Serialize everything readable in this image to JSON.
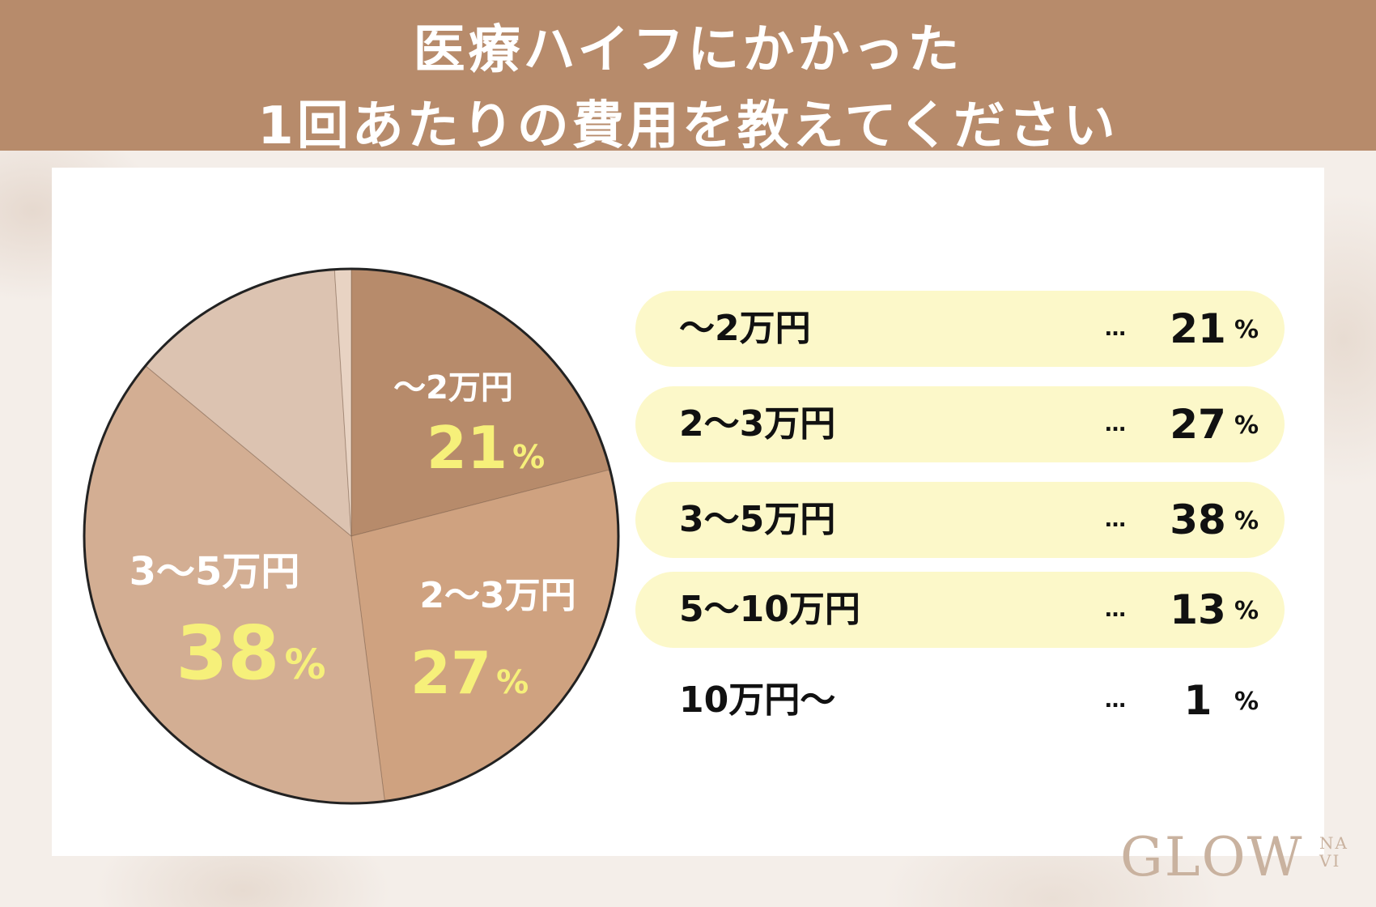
{
  "header": {
    "line1": "医療ハイフにかかった",
    "line2": "1回あたりの費用を教えてください"
  },
  "colors": {
    "header_bg": "#b78b6b",
    "legend_highlight": "#fcf8c9",
    "pie_label_pct": "#f6f07a",
    "pie_label_text": "#ffffff"
  },
  "chart_data": {
    "type": "pie",
    "title": "医療ハイフにかかった1回あたりの費用を教えてください",
    "unit": "%",
    "slices": [
      {
        "label": "〜2万円",
        "value": 21,
        "color": "#b78b6b"
      },
      {
        "label": "2〜3万円",
        "value": 27,
        "color": "#cfa280"
      },
      {
        "label": "3〜5万円",
        "value": 38,
        "color": "#d3ae93"
      },
      {
        "label": "5〜10万円",
        "value": 13,
        "color": "#dcc3b1"
      },
      {
        "label": "10万円〜",
        "value": 1,
        "color": "#e8d3c3"
      }
    ]
  },
  "legend": {
    "dots": "…",
    "percent": "%",
    "rows": [
      {
        "label": "〜2万円",
        "value": "21",
        "highlight": true
      },
      {
        "label": "2〜3万円",
        "value": "27",
        "highlight": true
      },
      {
        "label": "3〜5万円",
        "value": "38",
        "highlight": true
      },
      {
        "label": "5〜10万円",
        "value": "13",
        "highlight": true
      },
      {
        "label": "10万円〜",
        "value": "1",
        "highlight": false
      }
    ]
  },
  "logo": {
    "main": "GLOW",
    "small_top": "NA",
    "small_bottom": "VI"
  }
}
